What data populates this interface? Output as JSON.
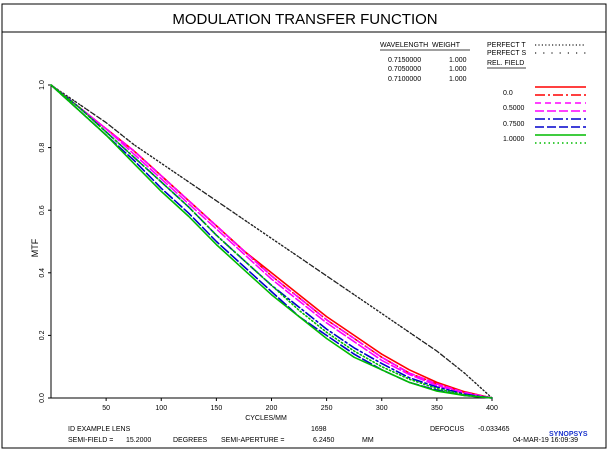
{
  "header": {
    "title": "MODULATION TRANSFER FUNCTION"
  },
  "wavelength_table": {
    "headers": [
      "WAVELENGTH",
      "WEIGHT"
    ],
    "rows": [
      [
        "0.7150000",
        "1.000"
      ],
      [
        "0.7050000",
        "1.000"
      ],
      [
        "0.7100000",
        "1.000"
      ]
    ]
  },
  "legend": {
    "perfect_t": "PERFECT T",
    "perfect_s": "PERFECT S",
    "rel_field": "REL. FIELD",
    "fields": [
      "0.0",
      "0.5000",
      "0.7500",
      "1.0000"
    ]
  },
  "footer": {
    "lens_id": "ID EXAMPLE LENS",
    "code": "1698",
    "defocus_label": "DEFOCUS",
    "defocus_value": "-0.033465",
    "brand": "SYNOPSYS",
    "semi_field_label": "SEMI-FIELD =",
    "semi_field_value": "15.2000",
    "degrees_label": "DEGREES",
    "semi_aperture_label": "SEMI-APERTURE =",
    "semi_aperture_value": "6.2450",
    "mm_label": "MM",
    "timestamp": "04-MAR-19  16:09:39"
  },
  "chart_data": {
    "type": "line",
    "xlabel": "CYCLES/MM",
    "ylabel": "MTF",
    "xlim": [
      0,
      400
    ],
    "ylim": [
      0,
      1
    ],
    "x_ticks": [
      50,
      100,
      150,
      200,
      250,
      300,
      350,
      400
    ],
    "y_ticks": [
      0.0,
      0.2,
      0.4,
      0.6,
      0.8,
      1.0
    ],
    "y_tick_labels": [
      "0.0",
      "0.2",
      "0.4",
      "0.6",
      "0.8",
      "1.0"
    ],
    "grid": false,
    "x": [
      0,
      25,
      50,
      75,
      100,
      125,
      150,
      175,
      200,
      225,
      250,
      275,
      300,
      325,
      350,
      375,
      400
    ],
    "series": [
      {
        "name": "PERFECT T",
        "color": "#222222",
        "dash": "dot",
        "values": [
          1.0,
          0.94,
          0.88,
          0.81,
          0.75,
          0.69,
          0.63,
          0.57,
          0.51,
          0.45,
          0.39,
          0.33,
          0.27,
          0.21,
          0.15,
          0.08,
          0.0
        ]
      },
      {
        "name": "PERFECT S",
        "color": "#222222",
        "dash": "dot-sparse",
        "values": [
          1.0,
          0.94,
          0.88,
          0.81,
          0.75,
          0.69,
          0.63,
          0.57,
          0.51,
          0.45,
          0.39,
          0.33,
          0.27,
          0.21,
          0.15,
          0.08,
          0.0
        ]
      },
      {
        "name": "0.0 T",
        "color": "#ff0000",
        "dash": "solid",
        "values": [
          1.0,
          0.93,
          0.86,
          0.79,
          0.71,
          0.63,
          0.55,
          0.47,
          0.4,
          0.33,
          0.26,
          0.2,
          0.14,
          0.09,
          0.05,
          0.02,
          0.0
        ]
      },
      {
        "name": "0.0 S",
        "color": "#ff0000",
        "dash": "dashdot",
        "values": [
          1.0,
          0.93,
          0.86,
          0.79,
          0.71,
          0.63,
          0.55,
          0.47,
          0.39,
          0.32,
          0.25,
          0.19,
          0.13,
          0.08,
          0.045,
          0.018,
          0.0
        ]
      },
      {
        "name": "0.5000 T",
        "color": "#ff00ff",
        "dash": "dash",
        "values": [
          1.0,
          0.93,
          0.86,
          0.79,
          0.71,
          0.63,
          0.55,
          0.47,
          0.39,
          0.32,
          0.25,
          0.19,
          0.13,
          0.08,
          0.045,
          0.018,
          0.0
        ]
      },
      {
        "name": "0.5000 S",
        "color": "#ff00ff",
        "dash": "dashlong",
        "values": [
          1.0,
          0.93,
          0.86,
          0.78,
          0.7,
          0.62,
          0.54,
          0.46,
          0.38,
          0.31,
          0.24,
          0.18,
          0.12,
          0.075,
          0.04,
          0.015,
          0.0
        ]
      },
      {
        "name": "0.7500 T",
        "color": "#0000cc",
        "dash": "dashdot",
        "values": [
          1.0,
          0.93,
          0.85,
          0.77,
          0.69,
          0.61,
          0.52,
          0.44,
          0.36,
          0.29,
          0.22,
          0.16,
          0.11,
          0.065,
          0.035,
          0.012,
          0.0
        ]
      },
      {
        "name": "0.7500 S",
        "color": "#0000cc",
        "dash": "dashlong",
        "values": [
          1.0,
          0.92,
          0.84,
          0.76,
          0.67,
          0.59,
          0.5,
          0.42,
          0.34,
          0.26,
          0.2,
          0.14,
          0.09,
          0.05,
          0.025,
          0.008,
          0.0
        ]
      },
      {
        "name": "1.0000 T",
        "color": "#00bb00",
        "dash": "solid",
        "values": [
          1.0,
          0.92,
          0.84,
          0.75,
          0.66,
          0.58,
          0.49,
          0.41,
          0.33,
          0.26,
          0.19,
          0.13,
          0.09,
          0.05,
          0.022,
          0.008,
          0.0
        ]
      },
      {
        "name": "1.0000 S",
        "color": "#00bb00",
        "dash": "dot",
        "values": [
          1.0,
          0.93,
          0.85,
          0.77,
          0.69,
          0.61,
          0.52,
          0.44,
          0.36,
          0.28,
          0.21,
          0.15,
          0.1,
          0.06,
          0.03,
          0.01,
          0.0
        ]
      }
    ]
  }
}
